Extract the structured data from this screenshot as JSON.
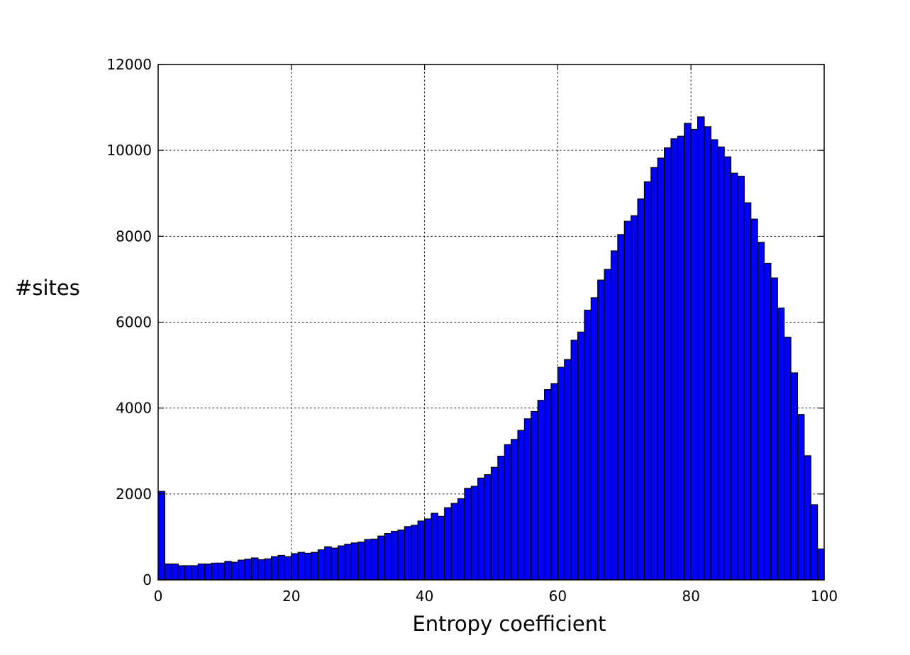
{
  "chart_data": {
    "type": "bar",
    "xlabel": "Entropy coefficient",
    "ylabel": "#sites",
    "xlim": [
      0,
      100
    ],
    "ylim": [
      0,
      12000
    ],
    "xticks": [
      0,
      20,
      40,
      60,
      80,
      100
    ],
    "yticks": [
      0,
      2000,
      4000,
      6000,
      8000,
      10000,
      12000
    ],
    "grid": true,
    "bar_color": "#0000ff",
    "bin_width": 1,
    "bin_starts": [
      0,
      1,
      2,
      3,
      4,
      5,
      6,
      7,
      8,
      9,
      10,
      11,
      12,
      13,
      14,
      15,
      16,
      17,
      18,
      19,
      20,
      21,
      22,
      23,
      24,
      25,
      26,
      27,
      28,
      29,
      30,
      31,
      32,
      33,
      34,
      35,
      36,
      37,
      38,
      39,
      40,
      41,
      42,
      43,
      44,
      45,
      46,
      47,
      48,
      49,
      50,
      51,
      52,
      53,
      54,
      55,
      56,
      57,
      58,
      59,
      60,
      61,
      62,
      63,
      64,
      65,
      66,
      67,
      68,
      69,
      70,
      71,
      72,
      73,
      74,
      75,
      76,
      77,
      78,
      79,
      80,
      81,
      82,
      83,
      84,
      85,
      86,
      87,
      88,
      89,
      90,
      91,
      92,
      93,
      94,
      95,
      96,
      97,
      98,
      99
    ],
    "values": [
      2060,
      370,
      370,
      330,
      330,
      330,
      370,
      370,
      390,
      390,
      430,
      410,
      460,
      480,
      510,
      470,
      490,
      540,
      570,
      540,
      610,
      640,
      620,
      640,
      700,
      770,
      740,
      790,
      830,
      860,
      880,
      940,
      950,
      1020,
      1080,
      1130,
      1160,
      1240,
      1270,
      1370,
      1420,
      1550,
      1480,
      1680,
      1780,
      1890,
      2130,
      2180,
      2370,
      2450,
      2620,
      2880,
      3150,
      3270,
      3480,
      3750,
      3920,
      4180,
      4430,
      4570,
      4950,
      5130,
      5580,
      5770,
      6280,
      6570,
      6980,
      7230,
      7660,
      8040,
      8350,
      8480,
      8870,
      9270,
      9600,
      9820,
      10060,
      10270,
      10330,
      10630,
      10490,
      10780,
      10550,
      10250,
      10080,
      9850,
      9470,
      9400,
      8780,
      8400,
      7860,
      7370,
      7030,
      6330,
      5650,
      4820,
      3850,
      2890,
      1750,
      720
    ]
  }
}
